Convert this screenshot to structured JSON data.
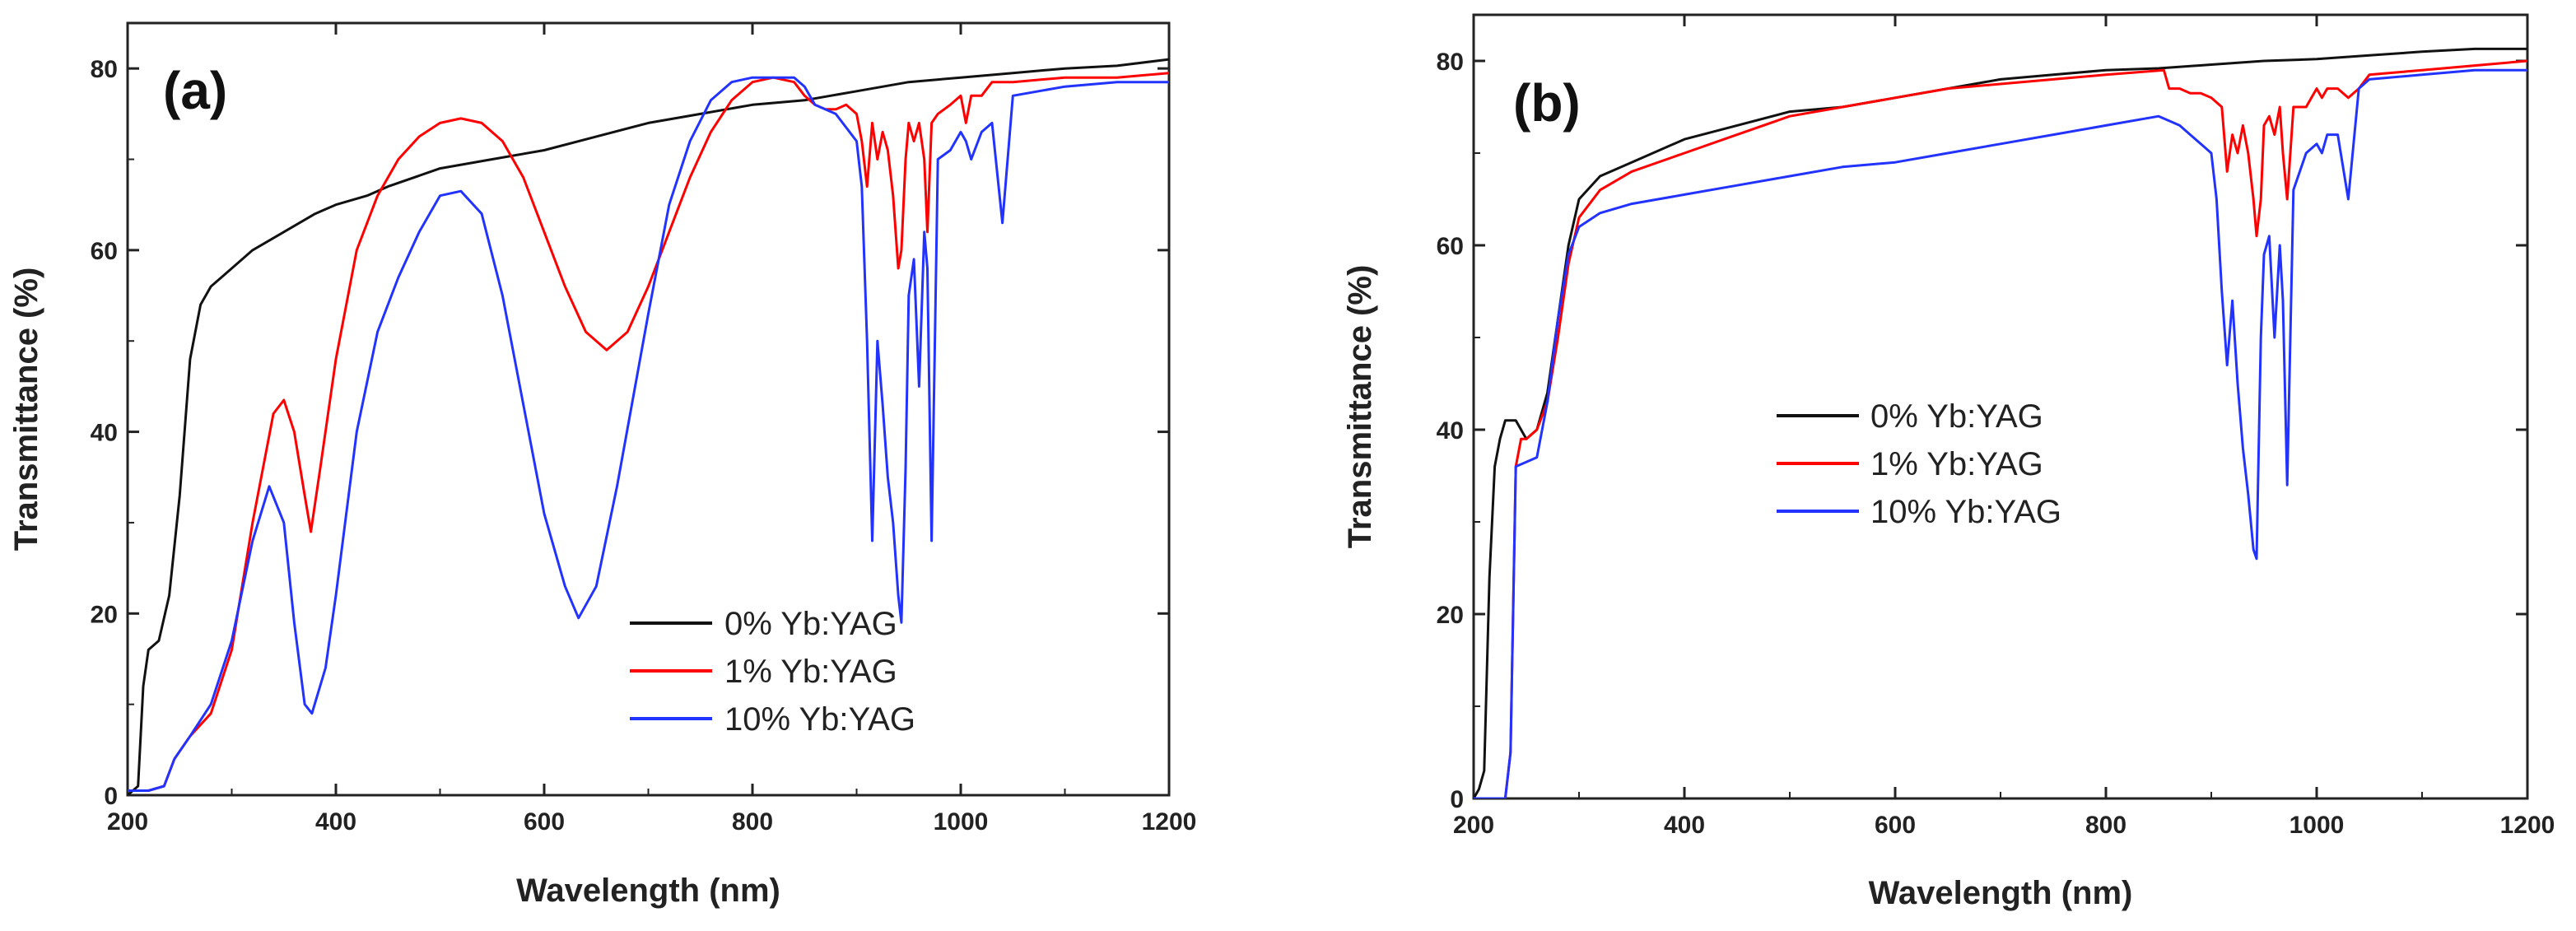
{
  "chart_data": [
    {
      "type": "line",
      "panel_label": "(a)",
      "xlabel": "Wavelength (nm)",
      "ylabel": "Transmittance (%)",
      "xlim": [
        200,
        1200
      ],
      "ylim": [
        0,
        85
      ],
      "xticks": [
        200,
        400,
        600,
        800,
        1000,
        1200
      ],
      "yticks": [
        0,
        20,
        40,
        60,
        80
      ],
      "legend_position": "bottom-right",
      "series": [
        {
          "name": "0% Yb:YAG",
          "color": "#111111",
          "x": [
            200,
            210,
            215,
            220,
            230,
            240,
            250,
            260,
            270,
            280,
            290,
            300,
            320,
            350,
            380,
            400,
            430,
            450,
            500,
            550,
            600,
            650,
            700,
            750,
            800,
            850,
            900,
            950,
            1000,
            1050,
            1100,
            1150,
            1200
          ],
          "y": [
            0,
            1,
            12,
            16,
            17,
            22,
            33,
            48,
            54,
            56,
            57,
            58,
            60,
            62,
            64,
            65,
            66,
            67,
            69,
            70,
            71,
            72.5,
            74,
            75,
            76,
            76.5,
            77.5,
            78.5,
            79,
            79.5,
            80,
            80.3,
            81
          ]
        },
        {
          "name": "1% Yb:YAG",
          "color": "#ff0000",
          "x": [
            200,
            220,
            235,
            245,
            260,
            280,
            300,
            320,
            340,
            350,
            360,
            370,
            376,
            385,
            400,
            420,
            440,
            460,
            480,
            500,
            520,
            540,
            560,
            580,
            600,
            620,
            640,
            660,
            680,
            700,
            720,
            740,
            760,
            780,
            800,
            820,
            840,
            850,
            860,
            870,
            880,
            890,
            900,
            905,
            910,
            915,
            920,
            925,
            930,
            935,
            940,
            943,
            947,
            950,
            955,
            960,
            965,
            968,
            972,
            978,
            990,
            1000,
            1005,
            1010,
            1020,
            1030,
            1050,
            1100,
            1150,
            1200
          ],
          "y": [
            0.5,
            0.5,
            1,
            4,
            6.5,
            9,
            16,
            30,
            42,
            43.5,
            40,
            33,
            29,
            36,
            48,
            60,
            66,
            70,
            72.5,
            74,
            74.5,
            74,
            72,
            68,
            62,
            56,
            51,
            49,
            51,
            56,
            62,
            68,
            73,
            76.5,
            78.5,
            79,
            78.5,
            77,
            76,
            75.5,
            75.5,
            76,
            75,
            72,
            67,
            74,
            70,
            73,
            71,
            66,
            58,
            60,
            70,
            74,
            72,
            74,
            70,
            62,
            74,
            75,
            76,
            77,
            74,
            77,
            77,
            78.5,
            78.5,
            79,
            79,
            79.5
          ]
        },
        {
          "name": "10% Yb:YAG",
          "color": "#2233ff",
          "x": [
            200,
            220,
            235,
            245,
            260,
            280,
            300,
            320,
            336,
            350,
            360,
            370,
            377,
            390,
            400,
            420,
            440,
            460,
            480,
            500,
            520,
            540,
            560,
            580,
            600,
            620,
            633,
            650,
            670,
            700,
            720,
            740,
            760,
            780,
            800,
            820,
            840,
            850,
            860,
            880,
            900,
            905,
            910,
            915,
            920,
            925,
            930,
            935,
            940,
            943,
            947,
            950,
            955,
            960,
            965,
            968,
            972,
            978,
            990,
            1000,
            1005,
            1010,
            1020,
            1030,
            1040,
            1050,
            1100,
            1150,
            1200
          ],
          "y": [
            0.5,
            0.5,
            1,
            4,
            6.5,
            10,
            17,
            28,
            34,
            30,
            19,
            10,
            9,
            14,
            22,
            40,
            51,
            57,
            62,
            66,
            66.5,
            64,
            55,
            43,
            31,
            23,
            19.5,
            23,
            34,
            53,
            65,
            72,
            76.5,
            78.5,
            79,
            79,
            79,
            78,
            76,
            75,
            72,
            67,
            50,
            28,
            50,
            43,
            35,
            30,
            22,
            19,
            36,
            55,
            59,
            45,
            62,
            58,
            28,
            70,
            71,
            73,
            72,
            70,
            73,
            74,
            63,
            77,
            78,
            78.5,
            78.5
          ]
        }
      ]
    },
    {
      "type": "line",
      "panel_label": "(b)",
      "xlabel": "Wavelength (nm)",
      "ylabel": "Transmittance (%)",
      "xlim": [
        200,
        1200
      ],
      "ylim": [
        0,
        85
      ],
      "xticks": [
        200,
        400,
        600,
        800,
        1000,
        1200
      ],
      "yticks": [
        0,
        20,
        40,
        60,
        80
      ],
      "legend_position": "center",
      "series": [
        {
          "name": "0% Yb:YAG",
          "color": "#111111",
          "x": [
            200,
            205,
            210,
            215,
            220,
            225,
            230,
            240,
            250,
            260,
            270,
            280,
            290,
            300,
            320,
            350,
            400,
            450,
            500,
            550,
            600,
            650,
            700,
            750,
            800,
            850,
            900,
            950,
            1000,
            1050,
            1100,
            1150,
            1200
          ],
          "y": [
            0,
            1,
            3,
            24,
            36,
            39,
            41,
            41,
            39,
            40,
            44,
            52,
            60,
            65,
            67.5,
            69,
            71.5,
            73,
            74.5,
            75,
            76,
            77,
            78,
            78.5,
            79,
            79.2,
            79.6,
            80,
            80.2,
            80.6,
            81,
            81.3,
            81.3
          ]
        },
        {
          "name": "1% Yb:YAG",
          "color": "#ff0000",
          "x": [
            200,
            230,
            235,
            240,
            245,
            250,
            260,
            270,
            280,
            290,
            300,
            320,
            350,
            400,
            450,
            500,
            550,
            600,
            650,
            700,
            750,
            800,
            855,
            860,
            870,
            880,
            890,
            900,
            910,
            915,
            920,
            925,
            930,
            935,
            940,
            943,
            947,
            950,
            955,
            960,
            965,
            968,
            972,
            978,
            990,
            1000,
            1005,
            1010,
            1020,
            1030,
            1040,
            1050,
            1100,
            1150,
            1200
          ],
          "y": [
            0,
            0,
            5,
            36,
            39,
            39,
            40,
            43,
            50,
            58,
            63,
            66,
            68,
            70,
            72,
            74,
            75,
            76,
            77,
            77.5,
            78,
            78.5,
            79,
            77,
            77,
            76.5,
            76.5,
            76,
            75,
            68,
            72,
            70,
            73,
            70,
            65,
            61,
            65,
            73,
            74,
            72,
            75,
            70,
            65,
            75,
            75,
            77,
            76,
            77,
            77,
            76,
            77,
            78.5,
            79,
            79.5,
            80
          ]
        },
        {
          "name": "10% Yb:YAG",
          "color": "#2233ff",
          "x": [
            200,
            230,
            235,
            240,
            250,
            260,
            270,
            280,
            290,
            300,
            320,
            350,
            400,
            450,
            500,
            550,
            600,
            650,
            700,
            750,
            800,
            850,
            860,
            870,
            880,
            890,
            900,
            905,
            910,
            915,
            920,
            925,
            930,
            935,
            940,
            943,
            947,
            950,
            955,
            960,
            965,
            968,
            972,
            978,
            990,
            1000,
            1005,
            1010,
            1020,
            1030,
            1040,
            1050,
            1100,
            1150,
            1200
          ],
          "y": [
            0,
            0,
            5,
            36,
            36.5,
            37,
            43,
            52,
            59,
            62,
            63.5,
            64.5,
            65.5,
            66.5,
            67.5,
            68.5,
            69,
            70,
            71,
            72,
            73,
            74,
            73.5,
            73,
            72,
            71,
            70,
            65,
            55,
            47,
            54,
            45,
            38,
            33,
            27,
            26,
            50,
            59,
            61,
            50,
            60,
            54,
            34,
            66,
            70,
            71,
            70,
            72,
            72,
            65,
            77,
            78,
            78.5,
            79,
            79
          ]
        }
      ]
    }
  ]
}
